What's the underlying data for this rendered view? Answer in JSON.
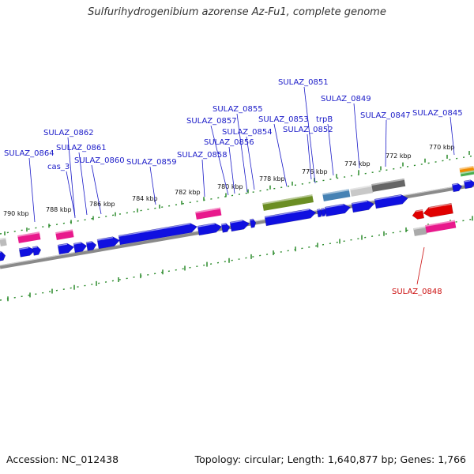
{
  "title": "Sulfurihydrogenibium azorense Az-Fu1, complete genome",
  "footer": {
    "accession": "Accession: NC_012438",
    "summary": "Topology: circular; Length: 1,640,877 bp; Genes: 1,766"
  },
  "colors": {
    "label_forward": "#1a1ac8",
    "label_reverse": "#cc1111",
    "gene_blue": "#1010e0",
    "gene_red": "#e00000",
    "pink": "#e8198c",
    "olive": "#6b8e23",
    "steelblue": "#4682b4",
    "gray": "#bbbbbb",
    "darkgray": "#666666",
    "tick": "#2a8a2a"
  },
  "tick_labels": [
    "770 kbp",
    "772 kbp",
    "774 kbp",
    "776 kbp",
    "778 kbp",
    "780 kbp",
    "782 kbp",
    "784 kbp",
    "786 kbp",
    "788 kbp",
    "790 kbp"
  ],
  "gene_labels": [
    "SULAZ_0845",
    "SULAZ_0847",
    "SULAZ_0849",
    "trpB",
    "SULAZ_0851",
    "SULAZ_0852",
    "SULAZ_0853",
    "SULAZ_0854",
    "SULAZ_0855",
    "SULAZ_0856",
    "SULAZ_0857",
    "SULAZ_0858",
    "SULAZ_0859",
    "SULAZ_0860",
    "SULAZ_0861",
    "cas_3",
    "SULAZ_0862",
    "SULAZ_0864",
    "SULAZ_0848"
  ]
}
